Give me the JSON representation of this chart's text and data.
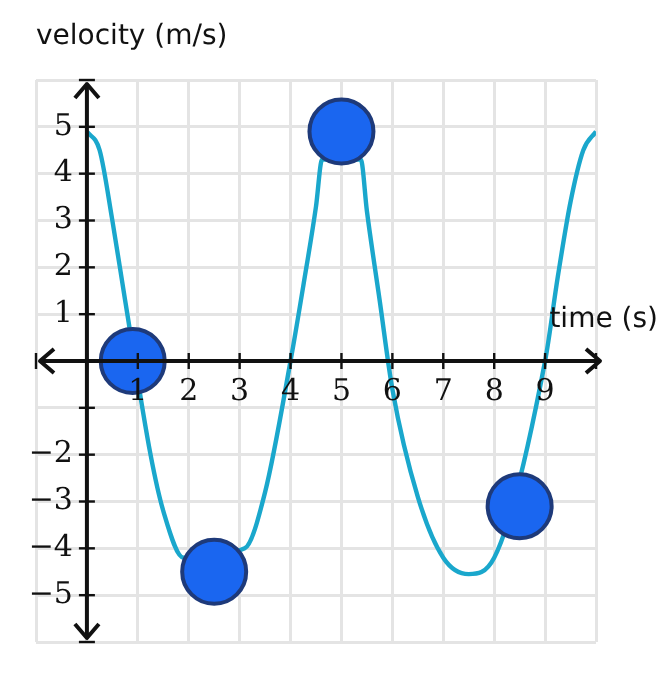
{
  "chart_data": {
    "type": "line",
    "xlabel": "time (s)",
    "ylabel": "velocity (m/s)",
    "xlim": [
      -1,
      10
    ],
    "ylim": [
      -6,
      6
    ],
    "xticks": [
      {
        "value": -1,
        "label": null
      },
      {
        "value": 0,
        "label": null
      },
      1,
      2,
      3,
      4,
      5,
      6,
      7,
      8,
      9,
      {
        "value": 10,
        "label": null
      }
    ],
    "yticks": [
      {
        "value": -6,
        "label": null
      },
      -5,
      -4,
      -3,
      -2,
      {
        "value": -1,
        "label": null
      },
      {
        "value": 0,
        "label": null
      },
      1,
      2,
      3,
      4,
      5,
      {
        "value": 6,
        "label": null
      }
    ],
    "grid": true,
    "series": [
      {
        "type": "line",
        "marker": "none",
        "color": "#1aa7cc",
        "x": [
          0,
          0.25,
          0.5,
          0.75,
          1.25,
          1.5,
          1.9,
          3.1,
          3.5,
          4,
          4.25,
          4.5,
          4.62,
          5.38,
          5.5,
          5.75,
          6,
          6.5,
          7,
          7.5,
          8,
          9,
          9.25,
          9.5,
          9.75,
          10
        ],
        "values": [
          4.9,
          4.5,
          3,
          1.3,
          -2,
          -3.2,
          -4.2,
          -4,
          -2.8,
          0,
          1.6,
          3.3,
          4.3,
          4.3,
          3.2,
          1.3,
          -0.6,
          -2.9,
          -4.2,
          -4.55,
          -4.2,
          0,
          1.8,
          3.4,
          4.5,
          4.9
        ]
      },
      {
        "type": "scatter",
        "marker": "circle",
        "color": "#1a66f0",
        "x": [
          0.9,
          2.5,
          5,
          8.5
        ],
        "values": [
          0,
          -4.5,
          4.9,
          -3.1
        ]
      }
    ]
  }
}
